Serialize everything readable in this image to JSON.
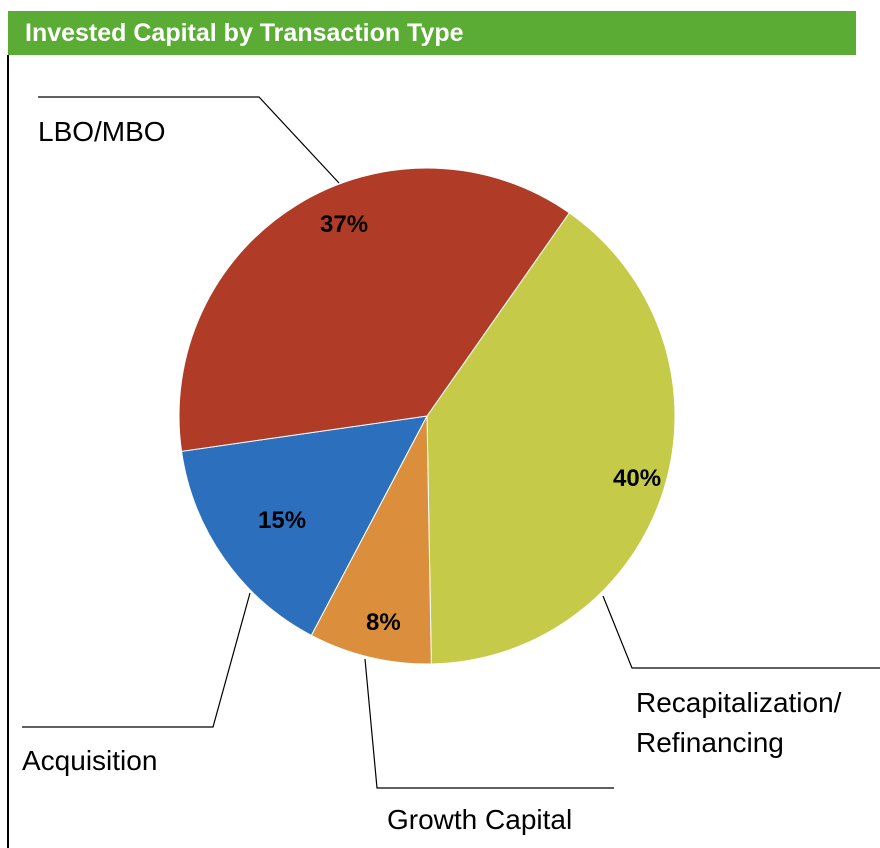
{
  "chart_data": {
    "type": "pie",
    "title": "Invested Capital by Transaction Type",
    "slices": [
      {
        "label": "Recapitalization/ Refinancing",
        "label_lines": [
          "Recapitalization/",
          "Refinancing"
        ],
        "value": 40,
        "value_label": "40%",
        "color": "#c5cb49"
      },
      {
        "label": "Growth Capital",
        "label_lines": [
          "Growth Capital"
        ],
        "value": 8,
        "value_label": "8%",
        "color": "#db8f3c"
      },
      {
        "label": "Acquisition",
        "label_lines": [
          "Acquisition"
        ],
        "value": 15,
        "value_label": "15%",
        "color": "#2c70bd"
      },
      {
        "label": "LBO/MBO",
        "label_lines": [
          "LBO/MBO"
        ],
        "value": 37,
        "value_label": "37%",
        "color": "#b03c28"
      }
    ],
    "legend": "none",
    "start_angle_deg": 35
  },
  "colors": {
    "title_bar": "#5aac34",
    "title_text": "#ffffff"
  }
}
